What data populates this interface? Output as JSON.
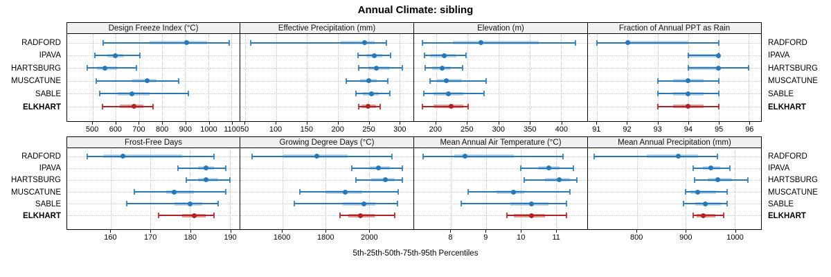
{
  "title": "Annual Climate: sibling",
  "caption": "5th-25th-50th-75th-95th Percentiles",
  "sites": [
    "RADFORD",
    "IPAVA",
    "HARTSBURG",
    "MUSCATUNE",
    "SABLE",
    "ELKHART"
  ],
  "highlight_site": "ELKHART",
  "colors": {
    "series": "#2878B8",
    "highlight": "#B22222",
    "grid": "#C9C9C9",
    "strip_bg": "#F0F0F0",
    "border": "#000000"
  },
  "chart_data": {
    "type": "dotplot-percentile-trellis",
    "note": "horizontal 5th-25th-50th-75th-95th percentile whiskers with median dot, one panel per climate variable, one row per soil series site",
    "percentile_labels": [
      "5th",
      "25th",
      "50th",
      "75th",
      "95th"
    ],
    "legend_position": "none",
    "grid": "dotted",
    "panels": [
      {
        "title": "Design Freeze Index (°C)",
        "grid_row": 0,
        "axis_min": 390,
        "axis_max": 1135,
        "ticks": [
          500,
          600,
          700,
          800,
          900,
          1000,
          1100
        ],
        "values": [
          [
            545,
            745,
            905,
            995,
            1090
          ],
          [
            510,
            565,
            597,
            635,
            705
          ],
          [
            476,
            520,
            552,
            605,
            689
          ],
          [
            516,
            670,
            736,
            776,
            872
          ],
          [
            531,
            608,
            670,
            747,
            915
          ],
          [
            543,
            617,
            678,
            718,
            760
          ]
        ]
      },
      {
        "title": "Effective Precipitation (mm)",
        "grid_row": 0,
        "axis_min": 42,
        "axis_max": 323,
        "ticks": [
          50,
          100,
          150,
          200,
          250,
          300
        ],
        "values": [
          [
            59,
            205,
            244,
            260,
            279
          ],
          [
            233,
            247,
            260,
            272,
            286
          ],
          [
            234,
            250,
            263,
            285,
            305
          ],
          [
            214,
            237,
            251,
            263,
            281
          ],
          [
            230,
            241,
            255,
            267,
            285
          ],
          [
            234,
            239,
            249,
            262,
            269
          ]
        ]
      },
      {
        "title": "Elevation (m)",
        "grid_row": 0,
        "axis_min": 165,
        "axis_max": 442,
        "ticks": [
          200,
          250,
          300,
          350,
          400
        ],
        "values": [
          [
            178,
            227,
            272,
            364,
            423
          ],
          [
            182,
            190,
            213,
            233,
            248
          ],
          [
            183,
            194,
            210,
            224,
            243
          ],
          [
            190,
            202,
            216,
            241,
            280
          ],
          [
            180,
            196,
            220,
            244,
            277
          ],
          [
            178,
            196,
            224,
            244,
            251
          ]
        ]
      },
      {
        "title": "Fraction of Annual PPT as Rain",
        "grid_row": 0,
        "axis_min": 90.7,
        "axis_max": 96.4,
        "ticks": [
          91,
          92,
          93,
          94,
          95,
          96
        ],
        "values": [
          [
            91,
            92,
            92,
            94,
            95
          ],
          [
            94,
            94,
            95,
            95,
            95
          ],
          [
            94,
            94,
            95,
            95,
            96
          ],
          [
            93,
            93.5,
            94,
            94.5,
            95
          ],
          [
            93,
            93.5,
            94,
            94.5,
            95
          ],
          [
            93,
            93.5,
            94,
            94.5,
            95
          ]
        ]
      },
      {
        "title": "Frost-Free Days",
        "grid_row": 1,
        "axis_min": 149,
        "axis_max": 192.5,
        "ticks": [
          160,
          170,
          180,
          190
        ],
        "values": [
          [
            154,
            158,
            163,
            178,
            186
          ],
          [
            177,
            182,
            184,
            186,
            189
          ],
          [
            179,
            182,
            184,
            187,
            190
          ],
          [
            166,
            174,
            176,
            181,
            189
          ],
          [
            164,
            176,
            180,
            183,
            187
          ],
          [
            172,
            178,
            181,
            184,
            186
          ]
        ]
      },
      {
        "title": "Growing Degree Days (°C)",
        "grid_row": 1,
        "axis_min": 1406,
        "axis_max": 2205,
        "ticks": [
          1600,
          1800,
          2000
        ],
        "values": [
          [
            1460,
            1605,
            1760,
            1900,
            2105
          ],
          [
            1920,
            2005,
            2045,
            2095,
            2155
          ],
          [
            1940,
            2010,
            2075,
            2120,
            2155
          ],
          [
            1680,
            1800,
            1890,
            1970,
            2135
          ],
          [
            1655,
            1880,
            1975,
            2030,
            2130
          ],
          [
            1865,
            1905,
            1960,
            2025,
            2120
          ]
        ]
      },
      {
        "title": "Mean Annual Air Temperature (°C)",
        "grid_row": 1,
        "axis_min": 6.95,
        "axis_max": 11.9,
        "ticks": [
          8,
          9,
          10,
          11
        ],
        "values": [
          [
            7.2,
            8.1,
            8.4,
            9.8,
            11.2
          ],
          [
            10.0,
            10.5,
            10.8,
            11.1,
            11.5
          ],
          [
            10.1,
            10.7,
            11.1,
            11.4,
            11.6
          ],
          [
            8.5,
            9.3,
            9.8,
            10.1,
            11.4
          ],
          [
            8.3,
            9.7,
            10.3,
            10.8,
            11.3
          ],
          [
            9.6,
            9.8,
            10.3,
            10.7,
            11.3
          ]
        ]
      },
      {
        "title": "Mean Annual Precipitation (mm)",
        "grid_row": 1,
        "axis_min": 700,
        "axis_max": 1054,
        "ticks": [
          800,
          900,
          1000
        ],
        "values": [
          [
            713,
            820,
            885,
            925,
            965
          ],
          [
            915,
            935,
            952,
            970,
            990
          ],
          [
            918,
            945,
            965,
            995,
            1027
          ],
          [
            899,
            910,
            925,
            962,
            985
          ],
          [
            895,
            920,
            940,
            972,
            985
          ],
          [
            915,
            923,
            936,
            960,
            977
          ]
        ]
      }
    ]
  }
}
